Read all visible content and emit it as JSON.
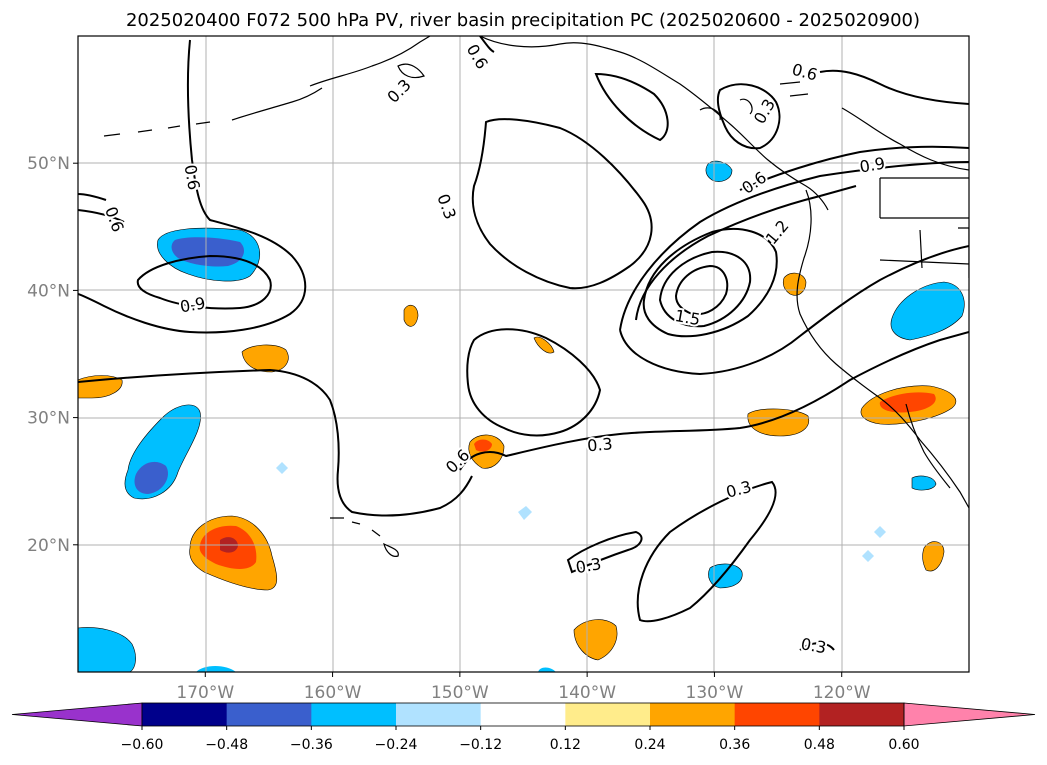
{
  "title": "2025020400 F072 500 hPa PV, river basin precipitation PC (2025020600 - 2025020900)",
  "map": {
    "lon_range": [
      -180,
      -110
    ],
    "lat_range": [
      10,
      60
    ],
    "lon_ticks": [
      {
        "value": -170,
        "label": "170°W"
      },
      {
        "value": -160,
        "label": "160°W"
      },
      {
        "value": -150,
        "label": "150°W"
      },
      {
        "value": -140,
        "label": "140°W"
      },
      {
        "value": -130,
        "label": "130°W"
      },
      {
        "value": -120,
        "label": "120°W"
      }
    ],
    "lat_ticks": [
      {
        "value": 50,
        "label": "50°N"
      },
      {
        "value": 40,
        "label": "40°N"
      },
      {
        "value": 30,
        "label": "30°N"
      },
      {
        "value": 20,
        "label": "20°N"
      }
    ],
    "grid": true
  },
  "contour_labels": [
    {
      "text": "0.6",
      "lon": -171.0,
      "lat": 48.9,
      "rot": 80
    },
    {
      "text": "0.6",
      "lon": -177.1,
      "lat": 45.6,
      "rot": 70
    },
    {
      "text": "0.9",
      "lon": -171.0,
      "lat": 38.9,
      "rot": -10
    },
    {
      "text": "0.3",
      "lon": -151.0,
      "lat": 46.6,
      "rot": 70
    },
    {
      "text": "0.6",
      "lon": -148.6,
      "lat": 58.4,
      "rot": 60
    },
    {
      "text": "0.3",
      "lon": -154.8,
      "lat": 55.7,
      "rot": -45
    },
    {
      "text": "0.6",
      "lon": -122.9,
      "lat": 57.2,
      "rot": 15
    },
    {
      "text": "0.3",
      "lon": -126.1,
      "lat": 54.1,
      "rot": -60
    },
    {
      "text": "0.9",
      "lon": -117.6,
      "lat": 49.9,
      "rot": -10
    },
    {
      "text": "0.6",
      "lon": -126.9,
      "lat": 48.5,
      "rot": -35
    },
    {
      "text": "1.2",
      "lon": -125.1,
      "lat": 44.6,
      "rot": -50
    },
    {
      "text": "1.5",
      "lon": -132.1,
      "lat": 37.9,
      "rot": 10
    },
    {
      "text": "0.3",
      "lon": -139.0,
      "lat": 27.9,
      "rot": -5
    },
    {
      "text": "0.6",
      "lon": -150.2,
      "lat": 26.6,
      "rot": -45
    },
    {
      "text": "0.3",
      "lon": -128.1,
      "lat": 24.4,
      "rot": -15
    },
    {
      "text": "0.3",
      "lon": -139.9,
      "lat": 18.4,
      "rot": -10
    },
    {
      "text": "0.3",
      "lon": -122.2,
      "lat": 12.1,
      "rot": 10
    }
  ],
  "colorbar": {
    "colors": [
      "#9932CC",
      "#00008B",
      "#3A5FCD",
      "#00BFFF",
      "#B0E2FF",
      "#FFFFFF",
      "#FFEC8B",
      "#FFA500",
      "#FF4500",
      "#B22222",
      "#FF82AB"
    ],
    "tick_labels": [
      "−0.60",
      "−0.48",
      "−0.36",
      "−0.24",
      "−0.12",
      "0.12",
      "0.24",
      "0.36",
      "0.48",
      "0.60"
    ]
  }
}
